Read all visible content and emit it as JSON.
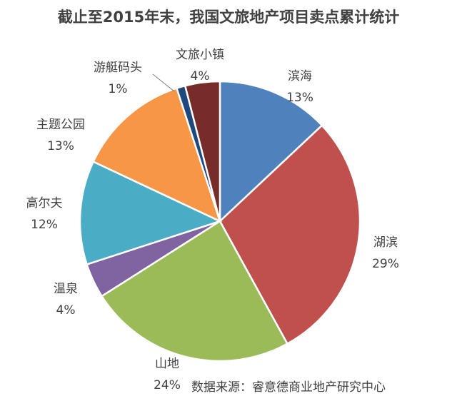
{
  "title": "截止至2015年末，我国文旅地产项目卖点累计统计",
  "source": "数据来源：睿意德商业地产研究中心",
  "chart_data": {
    "type": "pie",
    "title": "截止至2015年末，我国文旅地产项目卖点累计统计",
    "slices": [
      {
        "label": "滨海",
        "value": 13,
        "pct_label": "13%",
        "color": "#4F81BD"
      },
      {
        "label": "湖滨",
        "value": 29,
        "pct_label": "29%",
        "color": "#C0504D"
      },
      {
        "label": "山地",
        "value": 24,
        "pct_label": "24%",
        "color": "#9BBB59"
      },
      {
        "label": "温泉",
        "value": 4,
        "pct_label": "4%",
        "color": "#8064A2"
      },
      {
        "label": "高尔夫",
        "value": 12,
        "pct_label": "12%",
        "color": "#4BACC6"
      },
      {
        "label": "主题公园",
        "value": 13,
        "pct_label": "13%",
        "color": "#F79646"
      },
      {
        "label": "游艇码头",
        "value": 1,
        "pct_label": "1%",
        "color": "#1F497D"
      },
      {
        "label": "文旅小镇",
        "value": 4,
        "pct_label": "4%",
        "color": "#772C2A"
      }
    ]
  }
}
